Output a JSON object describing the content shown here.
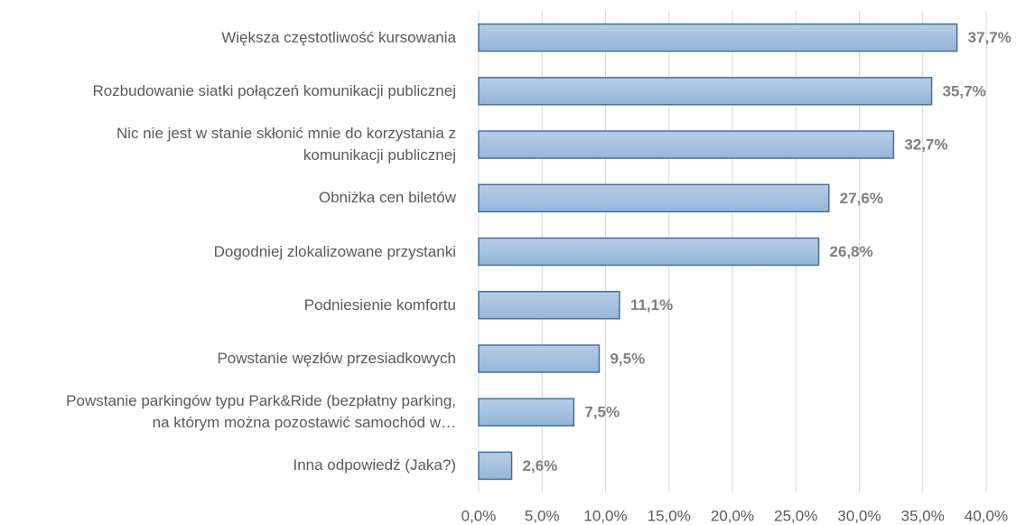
{
  "chart_data": {
    "type": "barh",
    "categories": [
      "Większa częstotliwość kursowania",
      "Rozbudowanie siatki połączeń komunikacji publicznej",
      "Nic nie jest w stanie skłonić mnie do korzystania z komunikacji publicznej",
      "Obniżka cen biletów",
      "Dogodniej zlokalizowane przystanki",
      "Podniesienie komfortu",
      "Powstanie węzłów przesiadkowych",
      "Powstanie parkingów typu Park&Ride (bezpłatny parking, na którym można pozostawić samochód w…",
      "Inna odpowiedź (Jaka?)"
    ],
    "values": [
      37.7,
      35.7,
      32.7,
      27.6,
      26.8,
      11.1,
      9.5,
      7.5,
      2.6
    ],
    "value_labels": [
      "37,7%",
      "35,7%",
      "32,7%",
      "27,6%",
      "26,8%",
      "11,1%",
      "9,5%",
      "7,5%",
      "2,6%"
    ],
    "color": "#95b6d8",
    "edgecolor": "#41719c",
    "xlim": [
      0,
      40
    ],
    "xticks": [
      {
        "value": 0,
        "label": "0,0%"
      },
      {
        "value": 5,
        "label": "5,0%"
      },
      {
        "value": 10,
        "label": "10,0%"
      },
      {
        "value": 15,
        "label": "15,0%"
      },
      {
        "value": 20,
        "label": "20,0%"
      },
      {
        "value": 25,
        "label": "25,0%"
      },
      {
        "value": 30,
        "label": "30,0%"
      },
      {
        "value": 35,
        "label": "35,0%"
      },
      {
        "value": 40,
        "label": "40,0%"
      }
    ],
    "grid": true
  }
}
